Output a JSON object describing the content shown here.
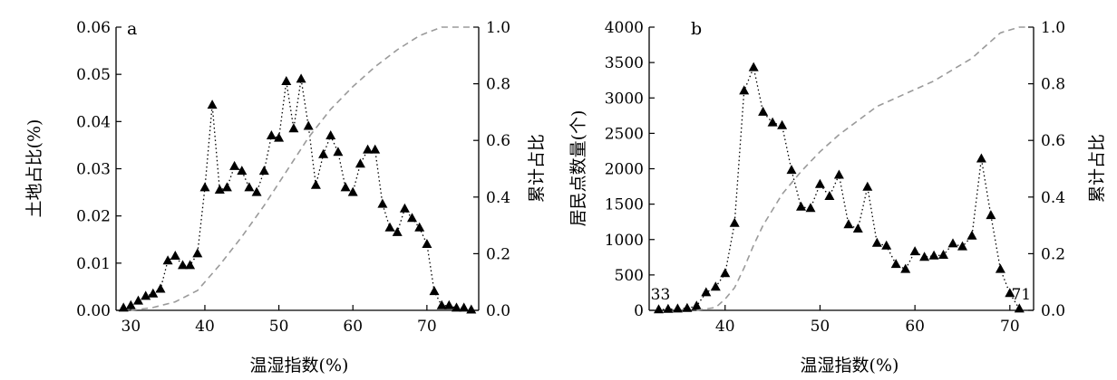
{
  "chart_data": [
    {
      "type": "scatter",
      "panel_label": "a",
      "xlabel": "温湿指数(%)",
      "ylabel": "土地占比(%)",
      "y2label": "累计占比",
      "xlim": [
        28,
        77
      ],
      "ylim": [
        0,
        0.06
      ],
      "y2lim": [
        0,
        1.0
      ],
      "xticks": [
        30,
        40,
        50,
        60,
        70
      ],
      "yticks": [
        0.0,
        0.01,
        0.02,
        0.03,
        0.04,
        0.05,
        0.06
      ],
      "y2ticks": [
        0.0,
        0.2,
        0.4,
        0.6,
        0.8,
        1.0
      ],
      "grid": false,
      "series": [
        {
          "kind": "points-dotted",
          "marker": "triangle",
          "axis": "left",
          "x": [
            29,
            30,
            31,
            32,
            33,
            34,
            35,
            36,
            37,
            38,
            39,
            40,
            41,
            42,
            43,
            44,
            45,
            46,
            47,
            48,
            49,
            50,
            51,
            52,
            53,
            54,
            55,
            56,
            57,
            58,
            59,
            60,
            61,
            62,
            63,
            64,
            65,
            66,
            67,
            68,
            69,
            70,
            71,
            72,
            73,
            74,
            75,
            76
          ],
          "y": [
            0.0005,
            0.001,
            0.002,
            0.003,
            0.0035,
            0.0045,
            0.0105,
            0.0115,
            0.0095,
            0.0095,
            0.012,
            0.026,
            0.0435,
            0.0255,
            0.026,
            0.0305,
            0.0295,
            0.026,
            0.025,
            0.0295,
            0.037,
            0.0365,
            0.0485,
            0.0385,
            0.049,
            0.039,
            0.0265,
            0.033,
            0.037,
            0.0335,
            0.026,
            0.025,
            0.031,
            0.034,
            0.034,
            0.0225,
            0.0175,
            0.0165,
            0.0215,
            0.0195,
            0.0175,
            0.014,
            0.004,
            0.001,
            0.001,
            0.0005,
            0.0005,
            0.0001
          ]
        },
        {
          "kind": "cumulative-dashed",
          "axis": "right",
          "color": "#9a9a9a",
          "x": [
            30,
            33,
            36,
            39,
            42,
            45,
            48,
            51,
            54,
            57,
            60,
            63,
            66,
            69,
            71,
            72,
            73,
            74,
            75,
            76
          ],
          "y": [
            0.0,
            0.01,
            0.03,
            0.07,
            0.16,
            0.26,
            0.37,
            0.49,
            0.61,
            0.71,
            0.79,
            0.86,
            0.92,
            0.97,
            0.99,
            1.0,
            1.0,
            1.0,
            1.0,
            1.0
          ]
        }
      ]
    },
    {
      "type": "scatter",
      "panel_label": "b",
      "xlabel": "温湿指数(%)",
      "ylabel": "居民点数量(个)",
      "y2label": "累计占比",
      "xlim": [
        32,
        72.5
      ],
      "ylim": [
        0,
        4000
      ],
      "y2lim": [
        0,
        1.0
      ],
      "xticks": [
        40,
        50,
        60,
        70
      ],
      "yticks": [
        0,
        500,
        1000,
        1500,
        2000,
        2500,
        3000,
        3500,
        4000
      ],
      "y2ticks": [
        0.0,
        0.2,
        0.4,
        0.6,
        0.8,
        1.0
      ],
      "grid": false,
      "annotations": [
        {
          "text": "33",
          "x": 33,
          "y": 0
        },
        {
          "text": "71",
          "x": 71,
          "y": 0
        }
      ],
      "series": [
        {
          "kind": "points-dotted",
          "marker": "triangle",
          "axis": "left",
          "x": [
            33,
            34,
            35,
            36,
            37,
            38,
            39,
            40,
            41,
            42,
            43,
            44,
            45,
            46,
            47,
            48,
            49,
            50,
            51,
            52,
            53,
            54,
            55,
            56,
            57,
            58,
            59,
            60,
            61,
            62,
            63,
            64,
            65,
            66,
            67,
            68,
            69,
            70,
            71
          ],
          "y": [
            10,
            15,
            20,
            30,
            60,
            250,
            330,
            520,
            1230,
            3100,
            3430,
            2800,
            2650,
            2610,
            1980,
            1460,
            1440,
            1780,
            1610,
            1910,
            1210,
            1150,
            1740,
            950,
            910,
            650,
            580,
            830,
            750,
            770,
            780,
            940,
            900,
            1050,
            2140,
            1340,
            580,
            240,
            20
          ]
        },
        {
          "kind": "cumulative-dashed",
          "axis": "right",
          "color": "#9a9a9a",
          "x": [
            37,
            39,
            40,
            41,
            42,
            43,
            44,
            46,
            48,
            50,
            52,
            54,
            56,
            58,
            60,
            62,
            64,
            66,
            67,
            68,
            69,
            70,
            71,
            72
          ],
          "y": [
            0.0,
            0.01,
            0.04,
            0.08,
            0.15,
            0.23,
            0.3,
            0.41,
            0.49,
            0.56,
            0.62,
            0.67,
            0.72,
            0.75,
            0.78,
            0.81,
            0.85,
            0.89,
            0.92,
            0.95,
            0.98,
            0.99,
            1.0,
            1.0
          ]
        }
      ]
    }
  ]
}
